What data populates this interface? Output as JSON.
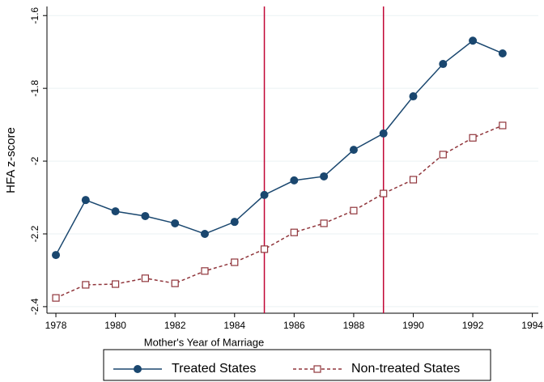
{
  "chart_data": {
    "type": "line",
    "x_label": "Mother's Year of Marriage",
    "y_label": "HFA z-score",
    "x": [
      1978,
      1979,
      1980,
      1981,
      1982,
      1983,
      1984,
      1985,
      1986,
      1987,
      1988,
      1989,
      1990,
      1991,
      1992,
      1993
    ],
    "series": [
      {
        "name": "Treated States",
        "color": "#1a476f",
        "marker": "filled-circle",
        "dash": "solid",
        "values": [
          -2.258,
          -2.107,
          -2.138,
          -2.151,
          -2.171,
          -2.2,
          -2.167,
          -2.093,
          -2.053,
          -2.042,
          -1.969,
          -1.924,
          -1.822,
          -1.733,
          -1.669,
          -1.704
        ]
      },
      {
        "name": "Non-treated States",
        "color": "#90353b",
        "marker": "hollow-square",
        "dash": "dashed",
        "values": [
          -2.376,
          -2.34,
          -2.338,
          -2.322,
          -2.336,
          -2.302,
          -2.278,
          -2.242,
          -2.196,
          -2.171,
          -2.136,
          -2.089,
          -2.051,
          -1.982,
          -1.936,
          -1.902
        ]
      }
    ],
    "vlines": [
      1985,
      1989
    ],
    "vline_color": "#c10534",
    "xlim": [
      1977.7,
      1994.2
    ],
    "xticks": [
      1978,
      1980,
      1982,
      1984,
      1986,
      1988,
      1990,
      1992,
      1994
    ],
    "ylim": [
      -2.418,
      -1.575
    ],
    "yticks": [
      -2.4,
      -2.2,
      -2,
      -1.8,
      -1.6
    ],
    "grid": true,
    "legend_position": "bottom"
  }
}
